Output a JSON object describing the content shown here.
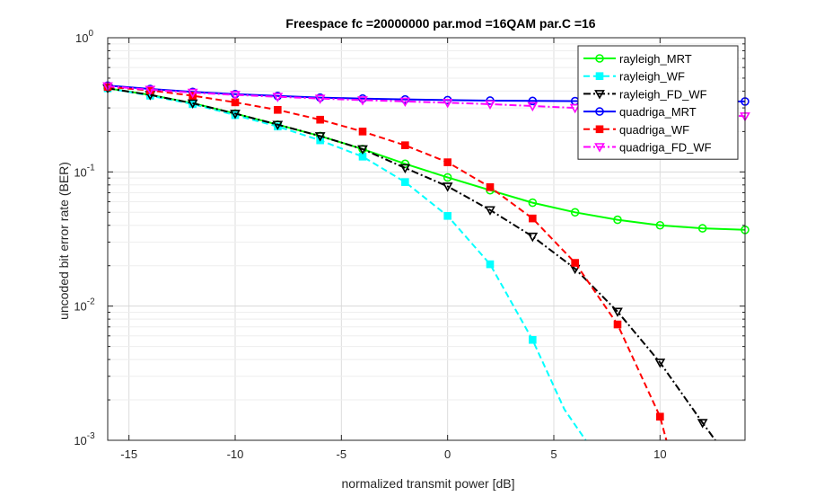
{
  "chart_data": {
    "type": "line",
    "title": "Freespace fc =20000000 par.mod =16QAM par.C =16",
    "xlabel": "normalized transmit power [dB]",
    "ylabel": "uncoded bit error rate (BER)",
    "xlim": [
      -16,
      14
    ],
    "ylim": [
      0.001,
      1
    ],
    "yscale": "log",
    "grid": true,
    "legend_position": "top-right",
    "x_ticks": [
      -15,
      -10,
      -5,
      0,
      5,
      10
    ],
    "x_tick_labels": [
      "-15",
      "-10",
      "-5",
      "0",
      "5",
      "10"
    ],
    "y_ticks": [
      0.001,
      0.01,
      0.1,
      1
    ],
    "y_tick_labels": [
      {
        "base": "10",
        "exp": "-3"
      },
      {
        "base": "10",
        "exp": "-2"
      },
      {
        "base": "10",
        "exp": "-1"
      },
      {
        "base": "10",
        "exp": "0"
      }
    ],
    "series": [
      {
        "name": "rayleigh_MRT",
        "color": "#00ff00",
        "dash": "solid",
        "marker": "circle",
        "x": [
          -16,
          -14,
          -12,
          -10,
          -8,
          -6,
          -4,
          -2,
          0,
          2,
          4,
          6,
          8,
          10,
          12,
          14
        ],
        "y": [
          0.42,
          0.375,
          0.325,
          0.272,
          0.225,
          0.185,
          0.148,
          0.115,
          0.091,
          0.073,
          0.059,
          0.05,
          0.044,
          0.04,
          0.038,
          0.037
        ]
      },
      {
        "name": "rayleigh_WF",
        "color": "#00ffff",
        "dash": "dashed",
        "marker": "square",
        "x": [
          -16,
          -14,
          -12,
          -10,
          -8,
          -6,
          -4,
          -2,
          0,
          2,
          4,
          5.5,
          6.5
        ],
        "y": [
          0.42,
          0.37,
          0.32,
          0.265,
          0.218,
          0.172,
          0.13,
          0.084,
          0.047,
          0.0205,
          0.0056,
          0.0017,
          0.001
        ]
      },
      {
        "name": "rayleigh_FD_WF",
        "color": "#000000",
        "dash": "dashdot",
        "marker": "triangle-down",
        "x": [
          -16,
          -14,
          -12,
          -10,
          -8,
          -6,
          -4,
          -2,
          0,
          2,
          4,
          6,
          8,
          10,
          12,
          12.6
        ],
        "y": [
          0.42,
          0.375,
          0.325,
          0.272,
          0.225,
          0.185,
          0.148,
          0.107,
          0.078,
          0.052,
          0.033,
          0.019,
          0.0091,
          0.0038,
          0.00135,
          0.001
        ]
      },
      {
        "name": "quadriga_MRT",
        "color": "#0000ff",
        "dash": "solid",
        "marker": "circle",
        "x": [
          -16,
          -14,
          -12,
          -10,
          -8,
          -6,
          -4,
          -2,
          0,
          2,
          4,
          6,
          8,
          10,
          12,
          14
        ],
        "y": [
          0.44,
          0.415,
          0.395,
          0.38,
          0.368,
          0.358,
          0.352,
          0.347,
          0.343,
          0.34,
          0.338,
          0.337,
          0.336,
          0.335,
          0.335,
          0.335
        ]
      },
      {
        "name": "quadriga_WF",
        "color": "#ff0000",
        "dash": "dashed",
        "marker": "square",
        "x": [
          -16,
          -14,
          -12,
          -10,
          -8,
          -6,
          -4,
          -2,
          0,
          2,
          4,
          6,
          8,
          10,
          10.3
        ],
        "y": [
          0.43,
          0.405,
          0.37,
          0.33,
          0.29,
          0.245,
          0.2,
          0.158,
          0.118,
          0.077,
          0.045,
          0.021,
          0.0073,
          0.0015,
          0.001
        ]
      },
      {
        "name": "quadriga_FD_WF",
        "color": "#ff00ff",
        "dash": "dashdot",
        "marker": "triangle-down",
        "x": [
          -16,
          -14,
          -12,
          -10,
          -8,
          -6,
          -4,
          -2,
          0,
          2,
          4,
          6,
          8,
          10,
          12,
          14
        ],
        "y": [
          0.435,
          0.41,
          0.39,
          0.375,
          0.363,
          0.352,
          0.343,
          0.335,
          0.328,
          0.32,
          0.31,
          0.3,
          0.29,
          0.28,
          0.27,
          0.26
        ]
      }
    ]
  }
}
